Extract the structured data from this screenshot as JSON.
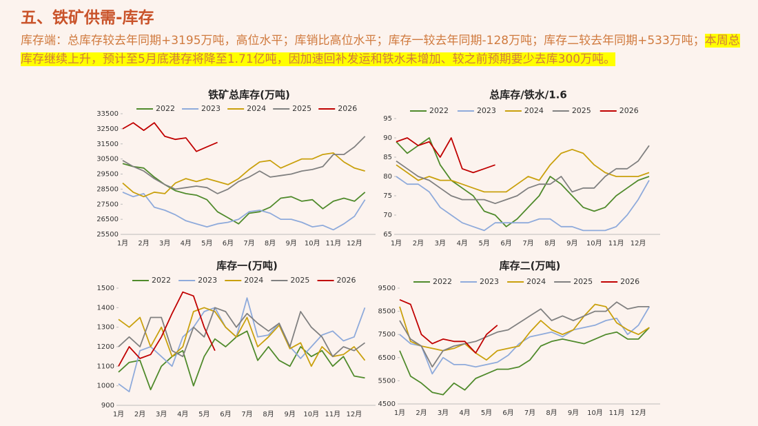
{
  "header": {
    "title": "五、铁矿供需-库存",
    "text": "库存端：总库存较去年同期+3195万吨，高位水平；库销比高位水平；库存一较去年同期-128万吨；库存二较去年同期+533万吨；",
    "highlight": "本周总库存继续上升，预计至5月底港存将降至1.71亿吨，因加速回补发运和铁水未增加、较之前预期要少去库300万吨。"
  },
  "chart_data": [
    {
      "type": "line",
      "title": "铁矿总库存(万吨)",
      "categories": [
        "1月",
        null,
        "2月",
        null,
        "3月",
        null,
        "4月",
        null,
        "5月",
        null,
        "6月",
        null,
        "7月",
        null,
        "8月",
        null,
        "9月",
        null,
        "10月",
        null,
        "11月",
        null,
        "12月",
        null
      ],
      "ylim": [
        25500,
        33500
      ],
      "yticks": [
        25500,
        26500,
        27500,
        28500,
        29500,
        30500,
        31500,
        32500,
        33500
      ],
      "series": [
        {
          "name": "2022",
          "color": "#4f8a2b",
          "values": [
            30200,
            30000,
            29900,
            29300,
            28800,
            28400,
            28200,
            28100,
            27800,
            27000,
            26600,
            26200,
            26900,
            27000,
            27300,
            27900,
            28000,
            27700,
            27800,
            27200,
            27700,
            27900,
            27700,
            28300
          ]
        },
        {
          "name": "2023",
          "color": "#8eaadb",
          "values": [
            28300,
            28000,
            28200,
            27300,
            27100,
            26800,
            26400,
            26200,
            26000,
            26200,
            26300,
            26500,
            27000,
            27100,
            26900,
            26500,
            26500,
            26300,
            26000,
            26100,
            25800,
            26200,
            26700,
            27800
          ]
        },
        {
          "name": "2024",
          "color": "#c9a00c",
          "values": [
            28900,
            28300,
            28000,
            28300,
            28200,
            28900,
            29200,
            29000,
            29200,
            29000,
            28800,
            29200,
            29800,
            30300,
            30400,
            29900,
            30200,
            30500,
            30500,
            30800,
            30900,
            30300,
            29900,
            29700
          ]
        },
        {
          "name": "2025",
          "color": "#808080",
          "values": [
            30400,
            30000,
            29700,
            29200,
            28800,
            28500,
            28600,
            28700,
            28600,
            28200,
            28500,
            29000,
            29300,
            29700,
            29300,
            29400,
            29500,
            29700,
            29800,
            30000,
            30800,
            30800,
            31300,
            32000
          ]
        },
        {
          "name": "2026",
          "color": "#c00000",
          "values": [
            32500,
            32900,
            32400,
            32900,
            32000,
            31800,
            31900,
            31000,
            31300,
            31600,
            null,
            null,
            null,
            null,
            null,
            null,
            null,
            null,
            null,
            null,
            null,
            null,
            null,
            null
          ]
        }
      ]
    },
    {
      "type": "line",
      "title": "总库存/铁水/1.6",
      "categories": [
        "1月",
        null,
        "2月",
        null,
        "3月",
        null,
        "4月",
        null,
        "5月",
        null,
        "6月",
        null,
        "7月",
        null,
        "8月",
        null,
        "9月",
        null,
        "10月",
        null,
        "11月",
        null,
        "12月",
        null
      ],
      "ylim": [
        65,
        95
      ],
      "yticks": [
        65,
        70,
        75,
        80,
        85,
        90,
        95
      ],
      "series": [
        {
          "name": "2022",
          "color": "#4f8a2b",
          "values": [
            89,
            86,
            88,
            90,
            83,
            79,
            77,
            75,
            71,
            70,
            67,
            69,
            72,
            75,
            80,
            78,
            75,
            72,
            71,
            72,
            75,
            77,
            79,
            80
          ]
        },
        {
          "name": "2023",
          "color": "#8eaadb",
          "values": [
            80,
            78,
            78,
            76,
            72,
            70,
            68,
            67,
            66,
            68,
            68,
            68,
            68,
            69,
            69,
            67,
            67,
            66,
            66,
            66,
            67,
            70,
            74,
            79
          ]
        },
        {
          "name": "2024",
          "color": "#c9a00c",
          "values": [
            83,
            81,
            79,
            80,
            79,
            79,
            78,
            77,
            76,
            76,
            76,
            78,
            80,
            79,
            83,
            86,
            87,
            86,
            83,
            81,
            80,
            80,
            80,
            81
          ]
        },
        {
          "name": "2025",
          "color": "#808080",
          "values": [
            84,
            82,
            80,
            79,
            77,
            75,
            74,
            74,
            74,
            73,
            74,
            75,
            77,
            78,
            78,
            80,
            76,
            77,
            77,
            80,
            82,
            82,
            84,
            88
          ]
        },
        {
          "name": "2026",
          "color": "#c00000",
          "values": [
            89,
            90,
            88,
            89,
            85,
            90,
            82,
            81,
            82,
            83,
            null,
            null,
            null,
            null,
            null,
            null,
            null,
            null,
            null,
            null,
            null,
            null,
            null,
            null
          ]
        }
      ]
    },
    {
      "type": "line",
      "title": "库存一(万吨)",
      "categories": [
        "1月",
        null,
        "2月",
        null,
        "3月",
        null,
        "4月",
        null,
        "5月",
        null,
        "6月",
        null,
        "7月",
        null,
        "8月",
        null,
        "9月",
        null,
        "10月",
        null,
        "11月",
        null,
        "12月",
        null
      ],
      "ylim": [
        900,
        1500
      ],
      "yticks": [
        900,
        1000,
        1100,
        1200,
        1300,
        1400,
        1500
      ],
      "series": [
        {
          "name": "2022",
          "color": "#4f8a2b",
          "values": [
            1070,
            1120,
            1130,
            980,
            1100,
            1150,
            1180,
            1000,
            1150,
            1240,
            1200,
            1250,
            1280,
            1130,
            1200,
            1130,
            1100,
            1200,
            1150,
            1180,
            1100,
            1150,
            1050,
            1040
          ]
        },
        {
          "name": "2023",
          "color": "#8eaadb",
          "values": [
            1010,
            970,
            1180,
            1200,
            1150,
            1100,
            1250,
            1300,
            1380,
            1400,
            1300,
            1250,
            1450,
            1250,
            1260,
            1320,
            1200,
            1140,
            1200,
            1260,
            1280,
            1230,
            1250,
            1400
          ]
        },
        {
          "name": "2024",
          "color": "#c9a00c",
          "values": [
            1340,
            1300,
            1350,
            1200,
            1300,
            1150,
            1200,
            1380,
            1400,
            1380,
            1300,
            1250,
            1350,
            1200,
            1250,
            1310,
            1190,
            1220,
            1100,
            1200,
            1150,
            1160,
            1200,
            1130
          ]
        },
        {
          "name": "2025",
          "color": "#808080",
          "values": [
            1200,
            1250,
            1200,
            1350,
            1350,
            1180,
            1150,
            1300,
            1250,
            1400,
            1380,
            1300,
            1370,
            1320,
            1280,
            1320,
            1200,
            1380,
            1300,
            1250,
            1150,
            1200,
            1180,
            1220
          ]
        },
        {
          "name": "2026",
          "color": "#c00000",
          "values": [
            1100,
            1200,
            1140,
            1160,
            1250,
            1370,
            1480,
            1460,
            1300,
            1180,
            null,
            null,
            null,
            null,
            null,
            null,
            null,
            null,
            null,
            null,
            null,
            null,
            null,
            null
          ]
        }
      ]
    },
    {
      "type": "line",
      "title": "库存二(万吨)",
      "categories": [
        "1月",
        null,
        "2月",
        null,
        "3月",
        null,
        "4月",
        null,
        "5月",
        null,
        "6月",
        null,
        "7月",
        null,
        "8月",
        null,
        "9月",
        null,
        "10月",
        null,
        "11月",
        null,
        "12月",
        null
      ],
      "ylim": [
        4500,
        9500
      ],
      "yticks": [
        4500,
        5500,
        6500,
        7500,
        8500,
        9500
      ],
      "series": [
        {
          "name": "2022",
          "color": "#4f8a2b",
          "values": [
            6800,
            5700,
            5400,
            5000,
            4900,
            5400,
            5100,
            5600,
            5800,
            6000,
            6000,
            6100,
            6400,
            7000,
            7200,
            7300,
            7200,
            7100,
            7300,
            7500,
            7600,
            7300,
            7300,
            7800
          ]
        },
        {
          "name": "2023",
          "color": "#8eaadb",
          "values": [
            7500,
            7100,
            7000,
            5800,
            6500,
            6200,
            6200,
            6100,
            6200,
            6300,
            6600,
            7100,
            7400,
            7500,
            7600,
            7400,
            7700,
            7800,
            7900,
            8100,
            8200,
            7500,
            7900,
            8700
          ]
        },
        {
          "name": "2024",
          "color": "#c9a00c",
          "values": [
            8700,
            7200,
            7000,
            6900,
            6800,
            6900,
            7100,
            6700,
            6400,
            6800,
            6900,
            7000,
            7600,
            8100,
            7700,
            7500,
            7700,
            8300,
            8800,
            8700,
            8000,
            7700,
            7500,
            7800
          ]
        },
        {
          "name": "2025",
          "color": "#808080",
          "values": [
            8100,
            7300,
            7000,
            6100,
            6800,
            7000,
            7100,
            7200,
            7400,
            7600,
            7700,
            8000,
            8300,
            8600,
            8100,
            8300,
            8100,
            8300,
            8500,
            8500,
            8900,
            8600,
            8700,
            8700
          ]
        },
        {
          "name": "2026",
          "color": "#c00000",
          "values": [
            9000,
            8800,
            7500,
            7100,
            7300,
            7200,
            7200,
            6700,
            7500,
            7900,
            null,
            null,
            null,
            null,
            null,
            null,
            null,
            null,
            null,
            null,
            null,
            null,
            null,
            null
          ]
        }
      ]
    }
  ]
}
